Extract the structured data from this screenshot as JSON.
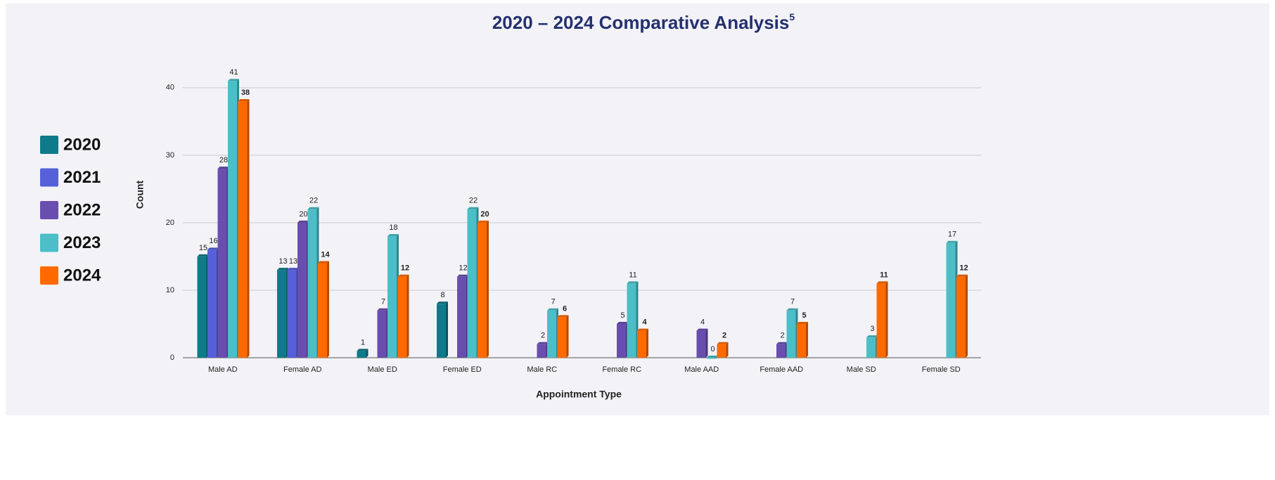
{
  "chart_data": {
    "type": "bar",
    "title": "2020 – 2024 Comparative Analysis",
    "title_note": "5",
    "x_label": "Appointment Type",
    "y_label": "Count",
    "categories": [
      "Male AD",
      "Female AD",
      "Male ED",
      "Female ED",
      "Male RC",
      "Female RC",
      "Male AAD",
      "Female AAD",
      "Male SD",
      "Female SD"
    ],
    "series": [
      {
        "name": "2020",
        "color": "#0f7a8a",
        "values": [
          15,
          13,
          1,
          8,
          null,
          null,
          null,
          null,
          null,
          null
        ]
      },
      {
        "name": "2021",
        "color": "#5560d9",
        "values": [
          16,
          13,
          null,
          null,
          null,
          null,
          null,
          null,
          null,
          null
        ]
      },
      {
        "name": "2022",
        "color": "#6a4eaf",
        "values": [
          28,
          20,
          7,
          12,
          2,
          5,
          4,
          2,
          null,
          null
        ]
      },
      {
        "name": "2023",
        "color": "#4bbec8",
        "values": [
          41,
          22,
          18,
          22,
          7,
          11,
          0,
          7,
          3,
          17
        ]
      },
      {
        "name": "2024",
        "color": "#ff6a00",
        "values": [
          38,
          14,
          12,
          20,
          6,
          4,
          2,
          5,
          11,
          12
        ]
      }
    ],
    "ylim": [
      0,
      43
    ],
    "yticks": [
      0,
      10,
      20,
      30,
      40
    ],
    "grid": true,
    "legend": "left"
  }
}
